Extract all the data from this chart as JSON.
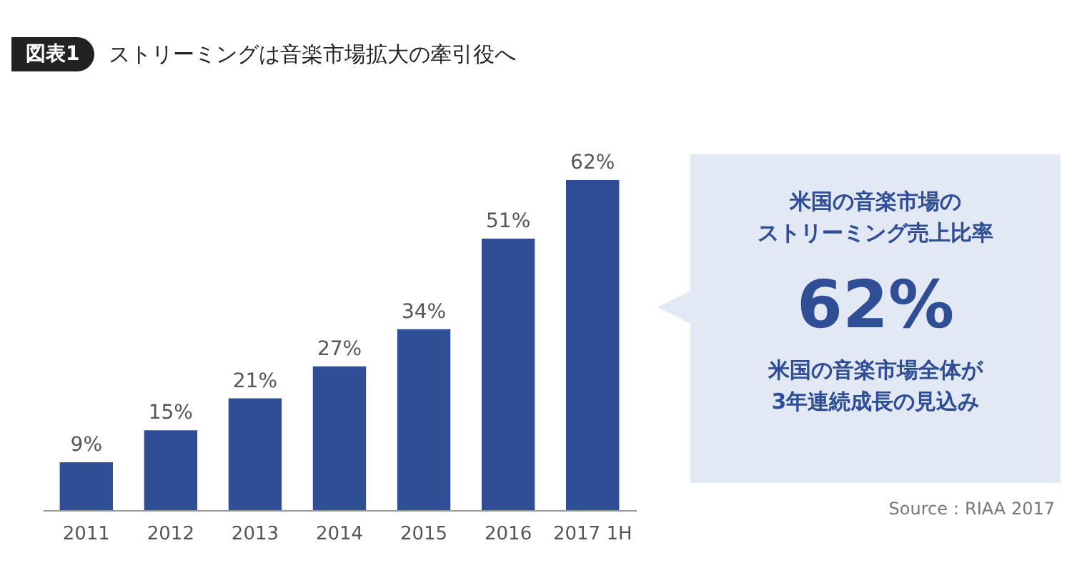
{
  "chart_data": {
    "type": "bar",
    "title": "ストリーミングは音楽市場拡大の牽引役へ",
    "categories": [
      "2011",
      "2012",
      "2013",
      "2014",
      "2015",
      "2016",
      "2017 1H"
    ],
    "values": [
      9,
      15,
      21,
      27,
      34,
      51,
      62
    ],
    "color": "#2f4e96",
    "value_labels": [
      "9%",
      "15%",
      "21%",
      "27%",
      "34%",
      "51%",
      "62%"
    ],
    "annotations": [
      "図表1",
      "米国の音楽市場の",
      "ストリーミング売上比率",
      "62%",
      "米国の音楽市場全体が",
      "3年連続成長の見込み",
      "Source：RIAA 2017"
    ]
  }
}
